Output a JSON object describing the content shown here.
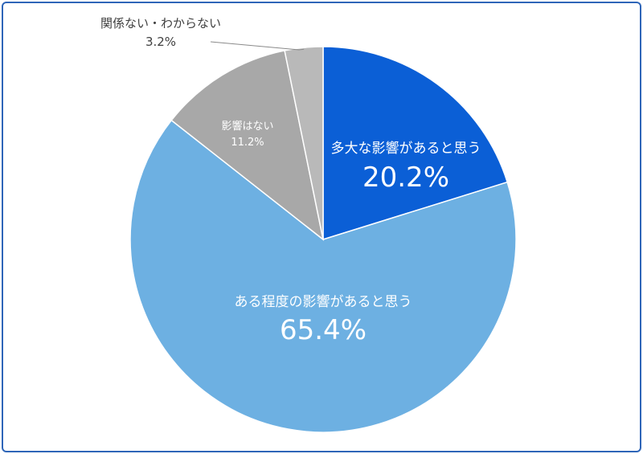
{
  "chart_data": {
    "type": "pie",
    "start_angle": "12 o'clock",
    "direction": "clockwise",
    "slices": [
      {
        "label": "多大な影響があると思う",
        "value_label": "20.2%",
        "value": 20.2,
        "color": "#0b5fd6",
        "text_color": "#ffffff"
      },
      {
        "label": "ある程度の影響があると思う",
        "value_label": "65.4%",
        "value": 65.4,
        "color": "#6db0e2",
        "text_color": "#ffffff"
      },
      {
        "label": "影響はない",
        "value_label": "11.2%",
        "value": 11.2,
        "color": "#a8a8a8",
        "text_color": "#ffffff"
      },
      {
        "label": "関係ない・わからない",
        "value_label": "3.2%",
        "value": 3.2,
        "color": "#b9b9b9",
        "text_color": "#404040"
      }
    ]
  }
}
